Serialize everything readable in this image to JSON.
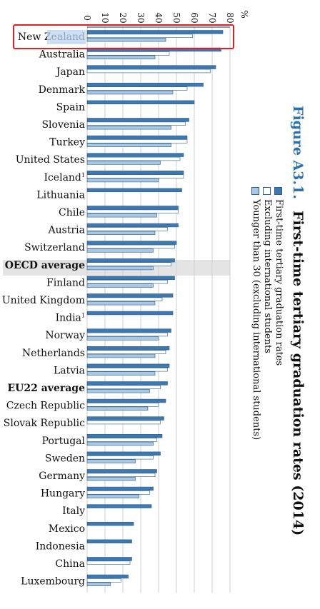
{
  "figure": {
    "label": "Figure A3.1.",
    "title": "First-time tertiary graduation rates (2014)"
  },
  "legend": [
    {
      "label": "First-time tertiary graduation rates",
      "swatch": "dark"
    },
    {
      "label": "Excluding international students",
      "swatch": "white"
    },
    {
      "label": "Younger than 30 (excluding international students)",
      "swatch": "light"
    }
  ],
  "colors": {
    "dark": "#3d78b3",
    "white": "#ffffff",
    "light": "#a9c6e3",
    "highlight_box": "#e02020",
    "oecd_band": "#e4e4e4"
  },
  "chart_data": {
    "type": "bar",
    "orientation": "horizontal",
    "axis_unit": "%",
    "xlim": [
      0,
      80
    ],
    "xticks": [
      "0",
      "10",
      "20",
      "30",
      "40",
      "50",
      "60",
      "70",
      "80"
    ],
    "categories": [
      "New Zealand",
      "Australia",
      "Japan",
      "Denmark",
      "Spain",
      "Slovenia",
      "Turkey",
      "United States",
      "Iceland",
      "Lithuania",
      "Chile",
      "Austria",
      "Switzerland",
      "OECD average",
      "Finland",
      "United Kingdom",
      "India",
      "Norway",
      "Netherlands",
      "Latvia",
      "EU22 average",
      "Czech Republic",
      "Slovak Republic",
      "Portugal",
      "Sweden",
      "Germany",
      "Hungary",
      "Italy",
      "Mexico",
      "Indonesia",
      "China",
      "Luxembourg"
    ],
    "footnotes": {
      "Iceland": "1",
      "India": "1"
    },
    "bold_categories": [
      "OECD average",
      "EU22 average"
    ],
    "highlighted_category": "New Zealand",
    "series": [
      {
        "name": "First-time tertiary graduation rates",
        "values": [
          76,
          75,
          72,
          65,
          60,
          57,
          56,
          54,
          54,
          53,
          51,
          51,
          50,
          49,
          49,
          48,
          48,
          47,
          46,
          46,
          45,
          44,
          43,
          42,
          41,
          39,
          37,
          36,
          26,
          25,
          25,
          23
        ]
      },
      {
        "name": "Excluding international students",
        "values": [
          59,
          46,
          69,
          56,
          null,
          55,
          56,
          52,
          54,
          null,
          51,
          45,
          49,
          47,
          45,
          42,
          null,
          45,
          44,
          45,
          41,
          40,
          41,
          39,
          37,
          38,
          35,
          null,
          null,
          null,
          24,
          19
        ]
      },
      {
        "name": "Younger than 30 (excluding international students)",
        "values": [
          44,
          38,
          null,
          48,
          null,
          47,
          47,
          41,
          40,
          null,
          39,
          38,
          37,
          37,
          37,
          38,
          null,
          40,
          38,
          38,
          35,
          34,
          null,
          37,
          27,
          27,
          29,
          null,
          null,
          null,
          null,
          13
        ]
      }
    ]
  }
}
